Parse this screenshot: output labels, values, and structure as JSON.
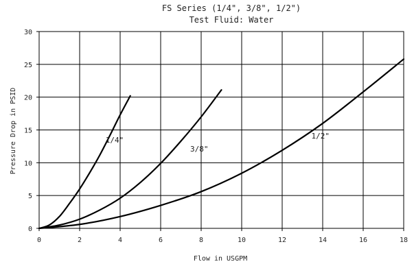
{
  "chart_data": {
    "type": "line",
    "title": "FS Series (1/4\", 3/8\", 1/2\")",
    "subtitle": "Test Fluid: Water",
    "xlabel": "Flow in USGPM",
    "ylabel": "Pressure Drop in PSID",
    "xlim": [
      0,
      18
    ],
    "ylim": [
      0,
      30
    ],
    "xticks": [
      0,
      2,
      4,
      6,
      8,
      10,
      12,
      14,
      16,
      18
    ],
    "yticks": [
      0,
      5,
      10,
      15,
      20,
      25,
      30
    ],
    "grid": true,
    "series": [
      {
        "name": "1/4\"",
        "x": [
          0,
          0.5,
          1,
          1.5,
          2,
          2.5,
          3,
          3.5,
          4,
          4.5
        ],
        "y": [
          0,
          0.5,
          1.8,
          3.8,
          6.0,
          8.5,
          11.2,
          14.2,
          17.3,
          20.2
        ]
      },
      {
        "name": "3/8\"",
        "x": [
          0,
          1,
          2,
          3,
          4,
          5,
          6,
          7,
          8,
          9
        ],
        "y": [
          0,
          0.5,
          1.4,
          2.8,
          4.6,
          7.0,
          9.9,
          13.3,
          17.0,
          21.1
        ]
      },
      {
        "name": "1/2\"",
        "x": [
          0,
          2,
          4,
          6,
          8,
          10,
          12,
          14,
          16,
          18
        ],
        "y": [
          0,
          0.6,
          1.8,
          3.5,
          5.6,
          8.4,
          11.9,
          16.0,
          20.8,
          25.8
        ]
      }
    ]
  }
}
